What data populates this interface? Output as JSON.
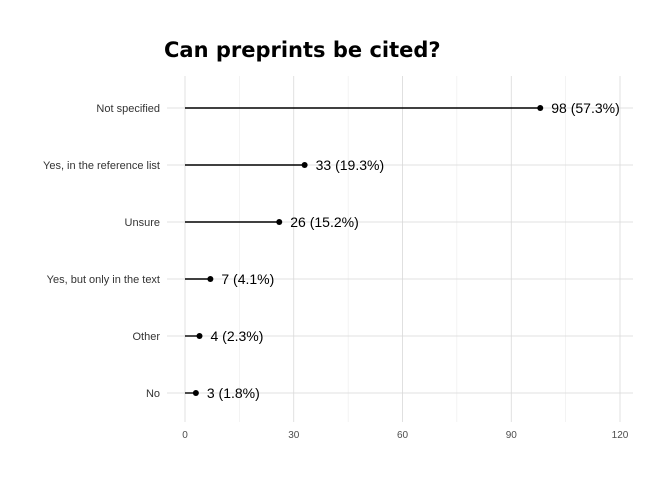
{
  "chart_data": {
    "type": "lollipop",
    "title": "Can preprints be cited?",
    "xlabel": "",
    "ylabel": "",
    "xlim": [
      0,
      120
    ],
    "x_ticks": [
      0,
      30,
      60,
      90,
      120
    ],
    "x_tick_labels": [
      "0",
      "30",
      "60",
      "90",
      "120"
    ],
    "grid": true,
    "categories": [
      "Not specified",
      "Yes, in the reference list",
      "Unsure",
      "Yes, but only in the text",
      "Other",
      "No"
    ],
    "values": [
      98,
      33,
      26,
      7,
      4,
      3
    ],
    "data_labels": [
      "98 (57.3%)",
      "33 (19.3%)",
      "26 (15.2%)",
      "7 (4.1%)",
      "4 (2.3%)",
      "3 (1.8%)"
    ],
    "colors": {
      "stem": "#000000",
      "point": "#000000"
    }
  }
}
